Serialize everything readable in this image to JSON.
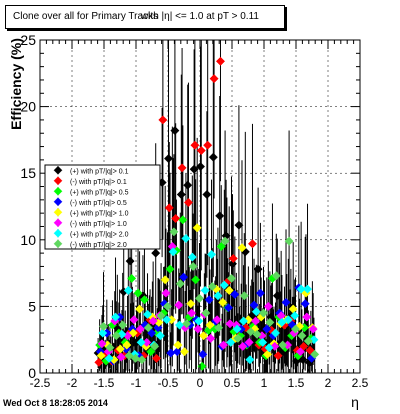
{
  "chart_data": {
    "type": "scatter",
    "title_part1": "Clone  over all for Primary Tracks",
    "title_part2": "with |η| <= 1.0 at pT > 0.11",
    "xlabel": "η",
    "ylabel": "Efficiency (%)",
    "xlim": [
      -2.5,
      2.5
    ],
    "ylim": [
      0,
      25
    ],
    "xticks": [
      "-2.5",
      "-2",
      "-1.5",
      "-1",
      "-0.5",
      "0",
      "0.5",
      "1",
      "1.5",
      "2",
      "2.5"
    ],
    "yticks": [
      "0",
      "5",
      "10",
      "15",
      "20",
      "25"
    ],
    "grid": true,
    "legend_position": "left-middle",
    "series": [
      {
        "name": "(+) with pT/|q|> 0.1",
        "color": "#000000",
        "x": [
          -1.55,
          -1.45,
          -1.35,
          -1.25,
          -1.15,
          -1.05,
          -0.95,
          -0.85,
          -0.75,
          -0.65,
          -0.55,
          -0.45,
          -0.35,
          -0.25,
          -0.15,
          -0.05,
          0.05,
          0.15,
          0.25,
          0.35,
          0.45,
          0.55,
          0.65,
          0.75,
          0.85,
          0.95,
          1.05,
          1.15,
          1.25,
          1.35,
          1.45,
          1.55,
          1.65,
          1.75
        ],
        "y": [
          1.5,
          1.0,
          1.2,
          3.4,
          6.1,
          8.4,
          2.3,
          5.8,
          3.2,
          9.0,
          14.3,
          16.1,
          18.2,
          13.4,
          14.1,
          15.3,
          15.5,
          13.4,
          16.2,
          11.8,
          10.3,
          8.2,
          11.1,
          9.1,
          4.3,
          7.8,
          3.3,
          4.2,
          5.8,
          1.6,
          4.2,
          0.9,
          1.0,
          0.8
        ]
      },
      {
        "name": "(-) with pT/|q|> 0.1",
        "color": "#ff0000",
        "x": [
          -1.55,
          -1.45,
          -1.35,
          -1.25,
          -1.15,
          -1.05,
          -0.95,
          -0.85,
          -0.75,
          -0.65,
          -0.55,
          -0.45,
          -0.35,
          -0.25,
          -0.15,
          -0.05,
          0.05,
          0.15,
          0.25,
          0.35,
          0.45,
          0.55,
          0.65,
          0.75,
          0.85,
          0.95,
          1.05,
          1.15,
          1.25,
          1.35,
          1.45,
          1.55,
          1.65,
          1.75
        ],
        "y": [
          0.8,
          1.4,
          0.9,
          1.7,
          1.3,
          3.1,
          3.0,
          1.3,
          4.0,
          1.1,
          19.0,
          12.4,
          11.6,
          15.4,
          12.8,
          17.1,
          16.7,
          17.1,
          22.1,
          23.4,
          6.8,
          8.6,
          2.8,
          3.4,
          9.7,
          2.1,
          1.8,
          3.2,
          1.3,
          3.6,
          3.9,
          1.7,
          2.0,
          1.7
        ]
      },
      {
        "name": "(+) with pT/|q|> 0.5",
        "color": "#00ff00",
        "x": [
          -1.55,
          -1.45,
          -1.35,
          -1.25,
          -1.15,
          -1.05,
          -0.95,
          -0.85,
          -0.75,
          -0.65,
          -0.55,
          -0.45,
          -0.35,
          -0.25,
          -0.15,
          -0.05,
          0.05,
          0.15,
          0.25,
          0.35,
          0.45,
          0.55,
          0.65,
          0.75,
          0.85,
          0.95,
          1.05,
          1.15,
          1.25,
          1.35,
          1.45,
          1.55,
          1.65,
          1.75
        ],
        "y": [
          2.1,
          0.9,
          3.6,
          3.0,
          2.3,
          7.1,
          6.0,
          5.5,
          1.6,
          3.0,
          4.5,
          7.8,
          9.2,
          11.5,
          4.2,
          7.0,
          0.5,
          3.2,
          3.3,
          9.5,
          4.9,
          3.1,
          2.8,
          2.1,
          3.5,
          2.3,
          1.3,
          7.1,
          4.2,
          1.9,
          2.8,
          1.3,
          3.4,
          2.6
        ]
      },
      {
        "name": "(-) with pT/|q|> 0.5",
        "color": "#0000ff",
        "x": [
          -1.55,
          -1.45,
          -1.35,
          -1.25,
          -1.15,
          -1.05,
          -0.95,
          -0.85,
          -0.75,
          -0.65,
          -0.55,
          -0.45,
          -0.35,
          -0.25,
          -0.15,
          -0.05,
          0.05,
          0.15,
          0.25,
          0.35,
          0.45,
          0.55,
          0.65,
          0.75,
          0.85,
          0.95,
          1.05,
          1.15,
          1.25,
          1.35,
          1.45,
          1.55,
          1.65,
          1.75
        ],
        "y": [
          1.6,
          3.0,
          0.9,
          4.2,
          1.8,
          3.3,
          1.3,
          3.6,
          3.0,
          3.4,
          5.2,
          1.5,
          1.6,
          7.2,
          3.6,
          4.0,
          1.4,
          5.5,
          3.9,
          2.0,
          4.9,
          5.9,
          3.3,
          2.2,
          5.1,
          6.0,
          3.3,
          2.8,
          4.5,
          5.3,
          3.6,
          6.4,
          5.2,
          1.1
        ]
      },
      {
        "name": "(+) with pT/|q|> 1.0",
        "color": "#ffff00",
        "x": [
          -1.55,
          -1.45,
          -1.35,
          -1.25,
          -1.15,
          -1.05,
          -0.95,
          -0.85,
          -0.75,
          -0.65,
          -0.55,
          -0.45,
          -0.35,
          -0.25,
          -0.15,
          -0.05,
          0.05,
          0.15,
          0.25,
          0.35,
          0.45,
          0.55,
          0.65,
          0.75,
          0.85,
          0.95,
          1.05,
          1.15,
          1.25,
          1.35,
          1.45,
          1.55,
          1.65,
          1.75
        ],
        "y": [
          1.3,
          2.1,
          1.0,
          1.8,
          2.1,
          3.0,
          4.8,
          2.0,
          4.2,
          3.8,
          7.0,
          4.0,
          2.1,
          1.6,
          5.2,
          10.9,
          2.8,
          3.6,
          6.3,
          5.3,
          6.2,
          2.6,
          9.4,
          4.0,
          3.3,
          4.2,
          1.4,
          2.2,
          3.7,
          4.0,
          4.8,
          3.5,
          6.0,
          3.4
        ]
      },
      {
        "name": "(-) with pT/|q|> 1.0",
        "color": "#ff00ff",
        "x": [
          -1.55,
          -1.45,
          -1.35,
          -1.25,
          -1.15,
          -1.05,
          -0.95,
          -0.85,
          -0.75,
          -0.65,
          -0.55,
          -0.45,
          -0.35,
          -0.25,
          -0.15,
          -0.05,
          0.05,
          0.15,
          0.25,
          0.35,
          0.45,
          0.55,
          0.65,
          0.75,
          0.85,
          0.95,
          1.05,
          1.15,
          1.25,
          1.35,
          1.45,
          1.55,
          1.65,
          1.75
        ],
        "y": [
          2.2,
          1.6,
          3.9,
          1.2,
          2.8,
          4.0,
          3.3,
          2.3,
          3.9,
          4.3,
          6.0,
          9.5,
          5.1,
          3.4,
          4.5,
          3.3,
          4.4,
          2.6,
          4.0,
          2.1,
          3.7,
          3.6,
          2.0,
          2.3,
          3.9,
          2.8,
          5.0,
          2.0,
          4.3,
          2.1,
          3.0,
          1.6,
          4.2,
          3.3
        ]
      },
      {
        "name": "(+) with pT/|q|> 2.0",
        "color": "#00ffff",
        "x": [
          -1.55,
          -1.45,
          -1.35,
          -1.25,
          -1.15,
          -1.05,
          -0.95,
          -0.85,
          -0.75,
          -0.65,
          -0.55,
          -0.45,
          -0.35,
          -0.25,
          -0.15,
          -0.05,
          0.05,
          0.15,
          0.25,
          0.35,
          0.45,
          0.55,
          0.65,
          0.75,
          0.85,
          0.95,
          1.05,
          1.15,
          1.25,
          1.35,
          1.45,
          1.55,
          1.65,
          1.75
        ],
        "y": [
          3.0,
          1.1,
          4.2,
          2.9,
          6.2,
          1.4,
          2.3,
          4.4,
          2.1,
          2.8,
          4.0,
          9.1,
          3.6,
          10.1,
          8.7,
          3.9,
          6.2,
          8.9,
          5.8,
          6.6,
          2.3,
          3.3,
          3.9,
          1.0,
          4.6,
          2.3,
          1.9,
          3.0,
          3.8,
          4.0,
          4.3,
          6.3,
          6.3,
          2.5
        ]
      },
      {
        "name": "(-) with pT/|q|> 2.0",
        "color": "#5fd75f",
        "x": [
          -1.55,
          -1.45,
          -1.35,
          -1.25,
          -1.15,
          -1.05,
          -0.95,
          -0.85,
          -0.75,
          -0.65,
          -0.55,
          -0.45,
          -0.35,
          -0.25,
          -0.15,
          -0.05,
          0.05,
          0.15,
          0.25,
          0.35,
          0.45,
          0.55,
          0.65,
          0.75,
          0.85,
          0.95,
          1.05,
          1.15,
          1.25,
          1.35,
          1.45,
          1.55,
          1.65,
          1.75
        ],
        "y": [
          3.5,
          1.9,
          2.8,
          3.6,
          1.3,
          1.1,
          1.0,
          3.4,
          2.0,
          4.3,
          5.0,
          10.6,
          6.7,
          3.7,
          8.0,
          5.6,
          4.5,
          6.5,
          3.4,
          9.9,
          7.1,
          2.6,
          5.8,
          3.1,
          2.9,
          4.5,
          3.8,
          7.3,
          2.1,
          9.9,
          3.3,
          2.8,
          2.4,
          1.4
        ]
      }
    ]
  },
  "footer": "Wed Oct  8 18:28:05 2014"
}
